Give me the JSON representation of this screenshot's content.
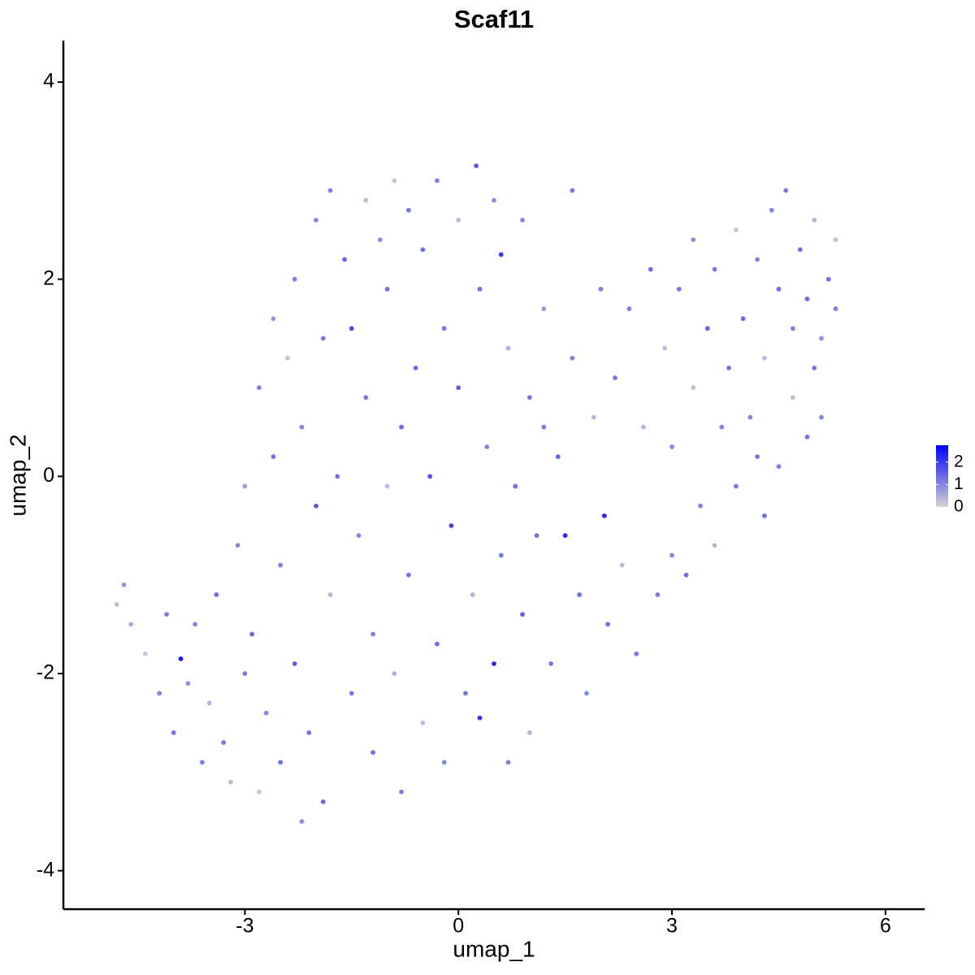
{
  "chart_data": {
    "type": "scatter",
    "title": "Scaf11",
    "x_label": "umap_1",
    "y_label": "umap_2",
    "xlim": [
      -5.55,
      6.55
    ],
    "ylim": [
      -4.39,
      4.42
    ],
    "xticks": [
      -3,
      0,
      3,
      6
    ],
    "yticks": [
      -4,
      -2,
      0,
      2,
      4
    ],
    "color_low": "#d3d3d3",
    "color_high": "#0000ff",
    "clim": [
      0,
      2.75
    ],
    "colorbar_ticks": [
      0,
      1,
      2
    ],
    "x": [
      -4.8,
      -4.7,
      -4.6,
      -4.4,
      -4.2,
      -4.1,
      -3.9,
      -4.0,
      -3.8,
      -3.7,
      -3.6,
      -3.5,
      -3.4,
      -3.3,
      -3.2,
      -3.1,
      -3.0,
      -3.0,
      -2.9,
      -2.8,
      -2.8,
      -2.7,
      -2.6,
      -2.6,
      -2.5,
      -2.5,
      -2.4,
      -2.3,
      -2.3,
      -2.2,
      -2.2,
      -2.1,
      -2.0,
      -2.0,
      -1.9,
      -1.9,
      -1.8,
      -1.8,
      -1.7,
      -1.6,
      -1.5,
      -1.5,
      -1.4,
      -1.3,
      -1.3,
      -1.2,
      -1.2,
      -1.1,
      -1.0,
      -1.0,
      -0.9,
      -0.9,
      -0.8,
      -0.8,
      -0.7,
      -0.7,
      -0.6,
      -0.5,
      -0.5,
      -0.4,
      -0.3,
      -0.3,
      -0.2,
      -0.2,
      -0.1,
      0.0,
      0.0,
      0.1,
      0.2,
      0.25,
      0.3,
      0.3,
      0.4,
      0.5,
      0.5,
      0.6,
      0.6,
      0.7,
      0.7,
      0.8,
      0.9,
      0.9,
      1.0,
      1.0,
      1.1,
      1.2,
      1.3,
      1.4,
      1.5,
      1.6,
      1.6,
      1.7,
      1.8,
      1.9,
      2.0,
      2.05,
      2.1,
      2.2,
      2.3,
      2.4,
      2.5,
      2.6,
      2.7,
      2.8,
      2.9,
      3.0,
      3.1,
      3.2,
      3.3,
      3.3,
      3.4,
      3.5,
      3.6,
      3.6,
      3.7,
      3.8,
      3.9,
      3.9,
      4.0,
      4.1,
      4.2,
      4.3,
      4.3,
      4.4,
      4.5,
      4.5,
      4.6,
      4.7,
      4.7,
      4.8,
      4.9,
      4.9,
      5.0,
      5.0,
      5.1,
      5.2,
      5.3,
      5.3,
      5.1,
      4.2,
      3.0,
      1.2
    ],
    "y": [
      -1.3,
      -1.1,
      -1.5,
      -1.8,
      -2.2,
      -1.4,
      -1.85,
      -2.6,
      -2.1,
      -1.5,
      -2.9,
      -2.3,
      -1.2,
      -2.7,
      -3.1,
      -0.7,
      -2.0,
      -0.1,
      -1.6,
      -3.2,
      0.9,
      -2.4,
      0.2,
      1.6,
      -0.9,
      -2.9,
      1.2,
      2.0,
      -1.9,
      -3.5,
      0.5,
      -2.6,
      2.6,
      -0.3,
      1.4,
      -3.3,
      2.9,
      -1.2,
      0.0,
      2.2,
      -2.2,
      1.5,
      -0.6,
      2.8,
      0.8,
      -1.6,
      -2.8,
      2.4,
      -0.1,
      1.9,
      -2.0,
      3.0,
      0.5,
      -3.2,
      2.7,
      -1.0,
      1.1,
      -2.5,
      2.3,
      0.0,
      -1.7,
      3.0,
      1.5,
      -2.9,
      -0.5,
      2.6,
      0.9,
      -2.2,
      -1.2,
      3.15,
      1.9,
      -2.45,
      0.3,
      -1.9,
      2.8,
      2.25,
      -0.8,
      -2.9,
      1.3,
      -0.1,
      2.6,
      -1.4,
      0.8,
      -2.6,
      -0.6,
      1.7,
      -1.9,
      0.2,
      -0.6,
      2.9,
      1.2,
      -1.2,
      -2.2,
      0.6,
      1.9,
      -0.4,
      -1.5,
      1.0,
      -0.9,
      1.7,
      -1.8,
      0.5,
      2.1,
      -1.2,
      1.3,
      -0.8,
      1.9,
      -1.0,
      2.4,
      0.9,
      -0.3,
      1.5,
      -0.7,
      2.1,
      0.5,
      1.1,
      2.5,
      -0.1,
      1.6,
      0.6,
      2.2,
      1.2,
      -0.4,
      2.7,
      0.1,
      1.9,
      2.9,
      0.8,
      1.5,
      2.3,
      0.4,
      1.8,
      2.6,
      1.1,
      0.6,
      2.0,
      2.4,
      1.7,
      1.4,
      0.2,
      0.3,
      0.5
    ],
    "values": [
      0.3,
      0.8,
      0.5,
      0.2,
      1.0,
      1.1,
      2.4,
      1.2,
      0.9,
      1.0,
      1.1,
      0.4,
      1.3,
      1.2,
      0.3,
      1.0,
      1.2,
      0.7,
      1.4,
      0.2,
      1.1,
      1.0,
      1.3,
      0.8,
      1.1,
      1.3,
      0.2,
      1.1,
      1.5,
      0.9,
      1.0,
      1.2,
      1.0,
      1.6,
      1.2,
      1.4,
      1.1,
      0.4,
      1.3,
      1.5,
      1.2,
      1.8,
      1.0,
      0.3,
      1.2,
      1.1,
      1.3,
      1.0,
      0.3,
      1.3,
      0.5,
      0.2,
      1.4,
      1.1,
      1.2,
      1.2,
      1.4,
      0.3,
      1.3,
      1.7,
      1.3,
      1.1,
      1.2,
      1.0,
      1.9,
      0.3,
      1.5,
      1.2,
      0.4,
      1.6,
      1.3,
      2.1,
      1.0,
      2.2,
      0.9,
      2.0,
      1.2,
      1.1,
      0.5,
      1.3,
      1.0,
      1.5,
      1.2,
      0.4,
      1.3,
      0.8,
      1.2,
      1.4,
      2.2,
      1.2,
      1.1,
      1.3,
      1.0,
      0.4,
      1.1,
      2.2,
      1.3,
      1.2,
      0.3,
      1.1,
      1.2,
      0.4,
      1.4,
      1.2,
      0.3,
      1.0,
      1.2,
      1.3,
      0.9,
      0.3,
      1.1,
      1.4,
      0.4,
      1.2,
      1.1,
      1.3,
      0.2,
      1.2,
      1.4,
      1.0,
      1.1,
      0.3,
      1.3,
      1.0,
      1.1,
      1.3,
      1.2,
      0.3,
      1.1,
      1.3,
      1.2,
      1.4,
      0.4,
      1.2,
      1.0,
      1.3,
      0.3,
      1.1,
      0.9,
      1.2,
      1.0,
      1.2
    ]
  }
}
